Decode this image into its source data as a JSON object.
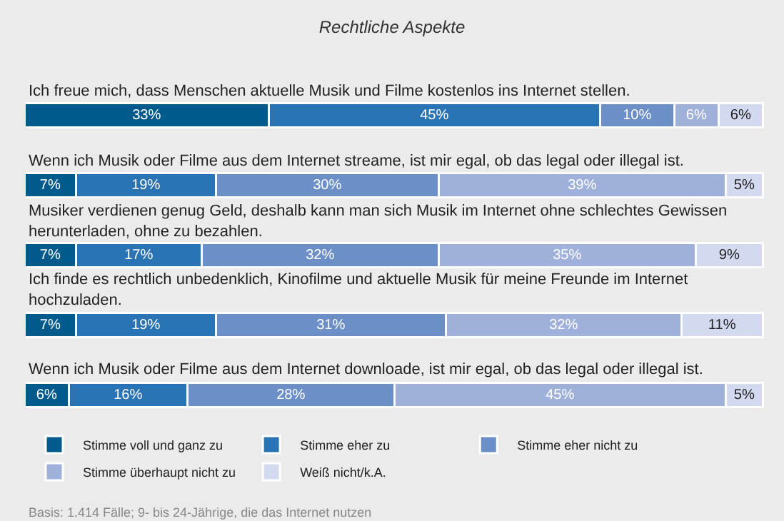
{
  "chart_data": {
    "type": "bar",
    "orientation": "horizontal",
    "stacked": true,
    "title": "Rechtliche Aspekte",
    "categories": [
      "Ich freue mich, dass Menschen aktuelle Musik und Filme kostenlos ins Internet stellen.",
      "Wenn ich Musik oder Filme aus dem Internet streame, ist mir egal, ob das legal oder illegal ist.",
      "Musiker verdienen genug Geld, deshalb kann man sich Musik im Internet ohne schlechtes Gewissen herunterladen, ohne zu bezahlen.",
      "Ich finde es rechtlich unbedenklich, Kinofilme und aktuelle Musik für meine Freunde im Internet hochzuladen.",
      "Wenn ich Musik oder Filme aus dem Internet downloade, ist mir egal, ob das legal oder illegal ist."
    ],
    "series": [
      {
        "name": "Stimme voll und ganz zu",
        "color": "#005a8c",
        "values": [
          33,
          7,
          7,
          7,
          6
        ],
        "value_labels": [
          "33%",
          "7%",
          "7%",
          "7%",
          "6%"
        ]
      },
      {
        "name": "Stimme eher zu",
        "color": "#2a74b5",
        "values": [
          45,
          19,
          17,
          19,
          16
        ],
        "value_labels": [
          "45%",
          "19%",
          "17%",
          "19%",
          "16%"
        ]
      },
      {
        "name": "Stimme eher nicht zu",
        "color": "#6b8fc6",
        "values": [
          10,
          30,
          32,
          31,
          28
        ],
        "value_labels": [
          "10%",
          "30%",
          "32%",
          "31%",
          "28%"
        ]
      },
      {
        "name": "Stimme überhaupt nicht zu",
        "color": "#9fb1db",
        "values": [
          6,
          39,
          35,
          32,
          45
        ],
        "value_labels": [
          "6%",
          "39%",
          "35%",
          "32%",
          "45%"
        ]
      },
      {
        "name": "Weiß nicht/k.A.",
        "color": "#d3d9ef",
        "values": [
          6,
          5,
          9,
          11,
          5
        ],
        "value_labels": [
          "6%",
          "5%",
          "9%",
          "11%",
          "5%"
        ]
      }
    ],
    "tick_labels": false,
    "grid": false,
    "legend": "bottom",
    "annotations": [
      "Basis: 1.414 Fälle; 9- bis 24-Jährige, die das Internet nutzen"
    ]
  }
}
